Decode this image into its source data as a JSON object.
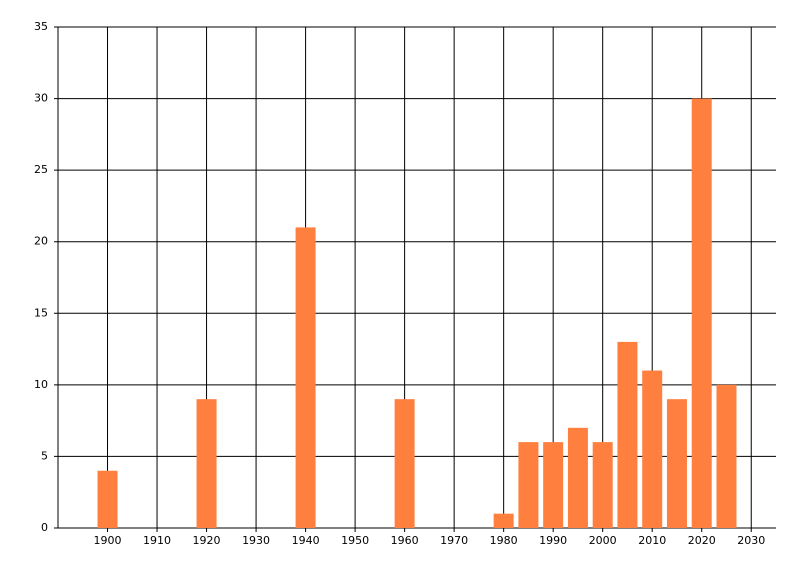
{
  "chart_data": {
    "type": "bar",
    "x": [
      1900,
      1920,
      1940,
      1960,
      1980,
      1985,
      1990,
      1995,
      2000,
      2005,
      2010,
      2015,
      2020,
      2025
    ],
    "values": [
      4,
      9,
      21,
      9,
      1,
      6,
      6,
      7,
      6,
      13,
      11,
      9,
      30,
      10
    ],
    "color": "#ff7f3f",
    "xlim": [
      1890,
      2035
    ],
    "xticks": [
      1900,
      1910,
      1920,
      1930,
      1940,
      1950,
      1960,
      1970,
      1980,
      1990,
      2000,
      2010,
      2020,
      2030
    ],
    "ylim": [
      0,
      35
    ],
    "yticks": [
      0,
      5,
      10,
      15,
      20,
      25,
      30,
      35
    ],
    "grid": true
  }
}
